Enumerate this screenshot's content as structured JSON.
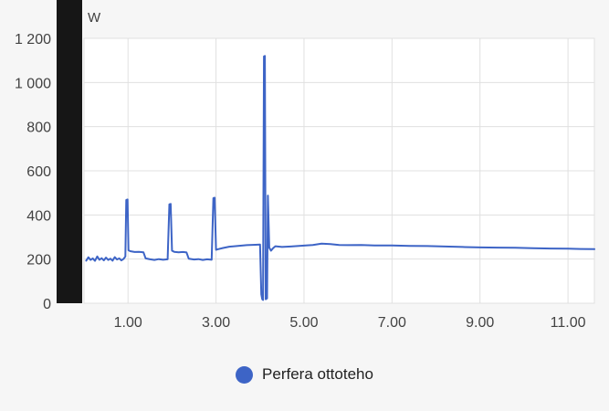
{
  "chart_data": {
    "type": "line",
    "title": "",
    "unit": "W",
    "ylabel": "W",
    "xlabel": "",
    "ylim": [
      0,
      1200
    ],
    "xlim": [
      0,
      11.6
    ],
    "grid": true,
    "legend_position": "bottom",
    "y_ticks": {
      "values": [
        0,
        200,
        400,
        600,
        800,
        1000,
        1200
      ],
      "labels": [
        "0",
        "200",
        "400",
        "600",
        "800",
        "1 000",
        "1 200"
      ]
    },
    "x_ticks": {
      "values": [
        1,
        3,
        5,
        7,
        9,
        11
      ],
      "labels": [
        "1.00",
        "3.00",
        "5.00",
        "7.00",
        "9.00",
        "11.00"
      ]
    },
    "series": [
      {
        "name": "Perfera ottoteho",
        "color": "#3d64c6",
        "points": [
          [
            0.05,
            193
          ],
          [
            0.1,
            208
          ],
          [
            0.15,
            196
          ],
          [
            0.2,
            203
          ],
          [
            0.25,
            192
          ],
          [
            0.3,
            212
          ],
          [
            0.35,
            197
          ],
          [
            0.4,
            204
          ],
          [
            0.45,
            194
          ],
          [
            0.5,
            207
          ],
          [
            0.55,
            196
          ],
          [
            0.6,
            202
          ],
          [
            0.65,
            193
          ],
          [
            0.7,
            209
          ],
          [
            0.75,
            198
          ],
          [
            0.8,
            203
          ],
          [
            0.85,
            194
          ],
          [
            0.9,
            201
          ],
          [
            0.94,
            212
          ],
          [
            0.96,
            468
          ],
          [
            0.99,
            470
          ],
          [
            1.01,
            240
          ],
          [
            1.05,
            236
          ],
          [
            1.15,
            232
          ],
          [
            1.25,
            233
          ],
          [
            1.35,
            231
          ],
          [
            1.4,
            203
          ],
          [
            1.5,
            199
          ],
          [
            1.6,
            196
          ],
          [
            1.7,
            200
          ],
          [
            1.8,
            197
          ],
          [
            1.9,
            199
          ],
          [
            1.94,
            448
          ],
          [
            1.97,
            450
          ],
          [
            2.0,
            238
          ],
          [
            2.05,
            233
          ],
          [
            2.15,
            231
          ],
          [
            2.25,
            232
          ],
          [
            2.33,
            230
          ],
          [
            2.38,
            202
          ],
          [
            2.5,
            198
          ],
          [
            2.6,
            200
          ],
          [
            2.7,
            196
          ],
          [
            2.8,
            199
          ],
          [
            2.9,
            197
          ],
          [
            2.94,
            476
          ],
          [
            2.97,
            478
          ],
          [
            3.0,
            242
          ],
          [
            3.05,
            245
          ],
          [
            3.15,
            250
          ],
          [
            3.3,
            256
          ],
          [
            3.5,
            260
          ],
          [
            3.7,
            263
          ],
          [
            3.9,
            265
          ],
          [
            4.0,
            266
          ],
          [
            4.03,
            40
          ],
          [
            4.05,
            18
          ],
          [
            4.07,
            15
          ],
          [
            4.09,
            1118
          ],
          [
            4.11,
            1120
          ],
          [
            4.13,
            18
          ],
          [
            4.16,
            22
          ],
          [
            4.18,
            488
          ],
          [
            4.21,
            252
          ],
          [
            4.25,
            238
          ],
          [
            4.3,
            250
          ],
          [
            4.35,
            258
          ],
          [
            4.5,
            255
          ],
          [
            4.7,
            257
          ],
          [
            5.0,
            261
          ],
          [
            5.2,
            264
          ],
          [
            5.4,
            270
          ],
          [
            5.6,
            268
          ],
          [
            5.8,
            264
          ],
          [
            6.0,
            263
          ],
          [
            6.3,
            264
          ],
          [
            6.6,
            262
          ],
          [
            7.0,
            262
          ],
          [
            7.4,
            260
          ],
          [
            7.8,
            259
          ],
          [
            8.2,
            257
          ],
          [
            8.6,
            255
          ],
          [
            9.0,
            253
          ],
          [
            9.4,
            252
          ],
          [
            9.8,
            251
          ],
          [
            10.2,
            249
          ],
          [
            10.6,
            248
          ],
          [
            11.0,
            247
          ],
          [
            11.3,
            246
          ],
          [
            11.6,
            245
          ]
        ]
      }
    ]
  },
  "legend": {
    "label": "Perfera ottoteho"
  },
  "colors": {
    "background": "#f6f6f6",
    "plot_background": "#ffffff",
    "gridline": "#e0e0e0",
    "axis_text": "#424242",
    "line": "#3d64c6",
    "dark_bar": "#161616"
  }
}
